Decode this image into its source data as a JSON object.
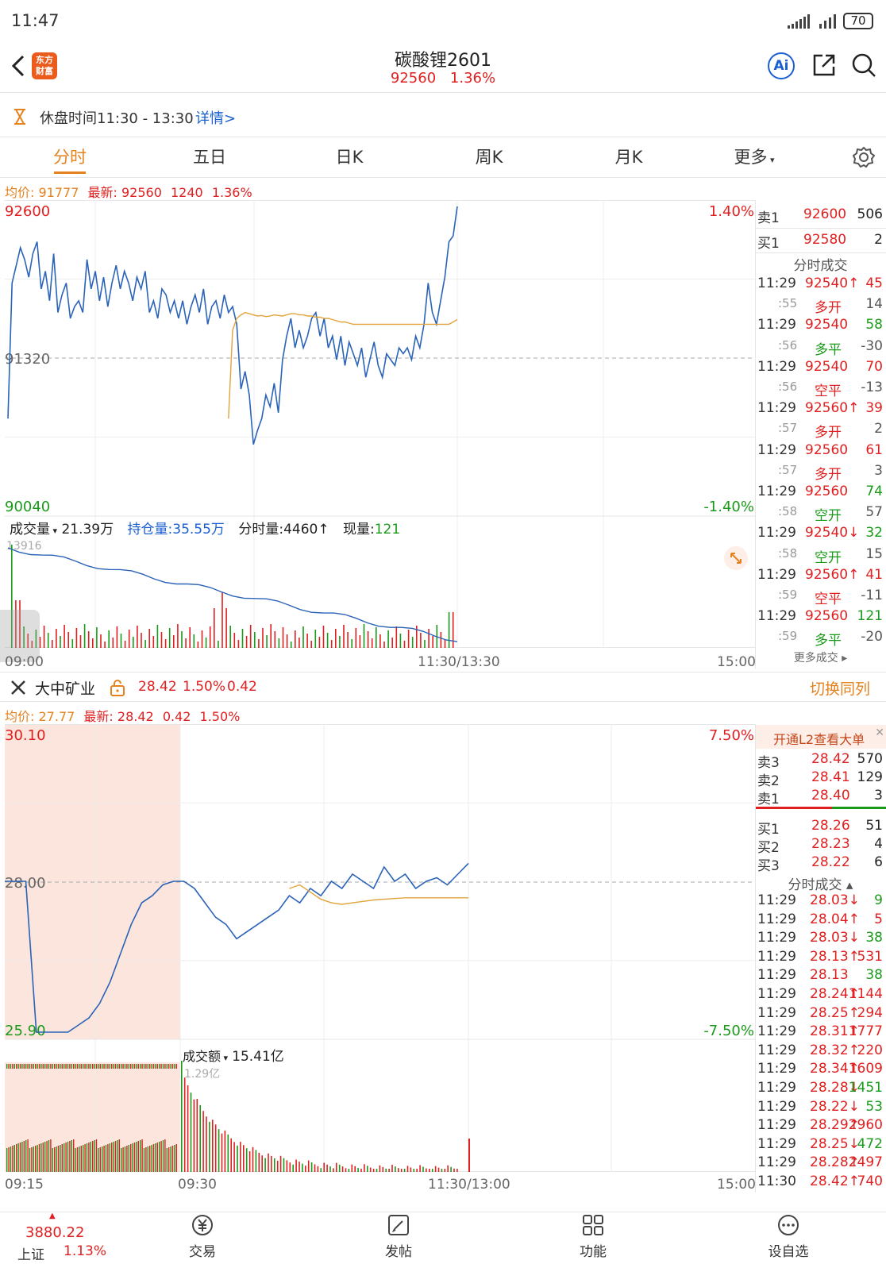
{
  "status_bar": {
    "time": "11:47",
    "battery": "70"
  },
  "header": {
    "logo_line1": "东方",
    "logo_line2": "财富",
    "title": "碳酸锂2601",
    "price": "92560",
    "change_pct": "1.36%"
  },
  "notice": {
    "text": "休盘时间11:30 - 13:30",
    "link": "详情>"
  },
  "tabs": [
    {
      "label": "分时",
      "active": true
    },
    {
      "label": "五日"
    },
    {
      "label": "日K"
    },
    {
      "label": "周K"
    },
    {
      "label": "月K"
    },
    {
      "label": "更多"
    }
  ],
  "chart1": {
    "avg_label": "均价:",
    "avg_value": "91777",
    "latest_label": "最新:",
    "latest_value": "92560",
    "latest_change": "1240",
    "latest_pct": "1.36%",
    "price_high": "92600",
    "price_mid": "91320",
    "price_low": "90040",
    "pct_high": "1.40%",
    "pct_low": "-1.40%",
    "vol_label": "成交量",
    "vol_value": "21.39万",
    "oi_label": "持仓量:",
    "oi_value": "35.55万",
    "seg_label": "分时量:",
    "seg_value": "4460↑",
    "cur_label": "现量:",
    "cur_value": "121",
    "vol_max": "13916",
    "time_start": "09:00",
    "time_mid": "11:30/13:30",
    "time_end": "15:00"
  },
  "orderbook1": {
    "rows": [
      {
        "label": "卖1",
        "price": "92600",
        "qty": "506"
      },
      {
        "label": "买1",
        "price": "92580",
        "qty": "2"
      }
    ],
    "trades_title": "分时成交",
    "trades": [
      {
        "time": "11:29",
        "price": "92540↑",
        "vol": "45",
        "pc": "red",
        "vc": "red"
      },
      {
        "time": ":55",
        "price": "多开",
        "vol": "14",
        "pc": "red",
        "vc": "gray"
      },
      {
        "time": "11:29",
        "price": "92540",
        "vol": "58",
        "pc": "red",
        "vc": "green"
      },
      {
        "time": ":56",
        "price": "多平",
        "vol": "-30",
        "pc": "green",
        "vc": "gray"
      },
      {
        "time": "11:29",
        "price": "92540",
        "vol": "70",
        "pc": "red",
        "vc": "red"
      },
      {
        "time": ":56",
        "price": "空平",
        "vol": "-13",
        "pc": "red",
        "vc": "gray"
      },
      {
        "time": "11:29",
        "price": "92560↑",
        "vol": "39",
        "pc": "red",
        "vc": "red"
      },
      {
        "time": ":57",
        "price": "多开",
        "vol": "2",
        "pc": "red",
        "vc": "gray"
      },
      {
        "time": "11:29",
        "price": "92560",
        "vol": "61",
        "pc": "red",
        "vc": "red"
      },
      {
        "time": ":57",
        "price": "多开",
        "vol": "3",
        "pc": "red",
        "vc": "gray"
      },
      {
        "time": "11:29",
        "price": "92560",
        "vol": "74",
        "pc": "red",
        "vc": "green"
      },
      {
        "time": ":58",
        "price": "空开",
        "vol": "57",
        "pc": "green",
        "vc": "gray"
      },
      {
        "time": "11:29",
        "price": "92540↓",
        "vol": "32",
        "pc": "red",
        "vc": "green"
      },
      {
        "time": ":58",
        "price": "空开",
        "vol": "15",
        "pc": "green",
        "vc": "gray"
      },
      {
        "time": "11:29",
        "price": "92560↑",
        "vol": "41",
        "pc": "red",
        "vc": "red"
      },
      {
        "time": ":59",
        "price": "空平",
        "vol": "-11",
        "pc": "red",
        "vc": "gray"
      },
      {
        "time": "11:29",
        "price": "92560",
        "vol": "121",
        "pc": "red",
        "vc": "green"
      },
      {
        "time": ":59",
        "price": "多平",
        "vol": "-20",
        "pc": "green",
        "vc": "gray"
      }
    ],
    "more": "更多成交 ▸"
  },
  "linked": {
    "name": "大中矿业",
    "price": "28.42",
    "pct": "1.50%",
    "change": "0.42",
    "switch": "切换同列"
  },
  "chart2": {
    "avg_label": "均价:",
    "avg_value": "27.77",
    "latest_label": "最新:",
    "latest_value": "28.42",
    "latest_change": "0.42",
    "latest_pct": "1.50%",
    "price_high": "30.10",
    "price_mid": "28.00",
    "price_low": "25.90",
    "pct_high": "7.50%",
    "pct_low": "-7.50%",
    "amt_label": "成交额",
    "amt_value": "15.41亿",
    "amt_max": "1.29亿",
    "time_start": "09:15",
    "time_open": "09:30",
    "time_mid": "11:30/13:00",
    "time_end": "15:00"
  },
  "orderbook2": {
    "l2": "开通L2查看大单",
    "sells": [
      {
        "label": "卖3",
        "price": "28.42",
        "qty": "570"
      },
      {
        "label": "卖2",
        "price": "28.41",
        "qty": "129"
      },
      {
        "label": "卖1",
        "price": "28.40",
        "qty": "3"
      }
    ],
    "buys": [
      {
        "label": "买1",
        "price": "28.26",
        "qty": "51"
      },
      {
        "label": "买2",
        "price": "28.23",
        "qty": "4"
      },
      {
        "label": "买3",
        "price": "28.22",
        "qty": "6"
      }
    ],
    "trades_title": "分时成交 ▴",
    "trades": [
      {
        "time": "11:29",
        "price": "28.03↓",
        "vol": "9",
        "pc": "red",
        "vc": "green"
      },
      {
        "time": "11:29",
        "price": "28.04↑",
        "vol": "5",
        "pc": "red",
        "vc": "red"
      },
      {
        "time": "11:29",
        "price": "28.03↓",
        "vol": "38",
        "pc": "red",
        "vc": "green"
      },
      {
        "time": "11:29",
        "price": "28.13↑",
        "vol": "531",
        "pc": "red",
        "vc": "red"
      },
      {
        "time": "11:29",
        "price": "28.13",
        "vol": "38",
        "pc": "red",
        "vc": "green"
      },
      {
        "time": "11:29",
        "price": "28.24↑",
        "vol": "1144",
        "pc": "red",
        "vc": "red"
      },
      {
        "time": "11:29",
        "price": "28.25↑",
        "vol": "294",
        "pc": "red",
        "vc": "red"
      },
      {
        "time": "11:29",
        "price": "28.31↑",
        "vol": "1777",
        "pc": "red",
        "vc": "red"
      },
      {
        "time": "11:29",
        "price": "28.32↑",
        "vol": "220",
        "pc": "red",
        "vc": "red"
      },
      {
        "time": "11:29",
        "price": "28.34↑",
        "vol": "1609",
        "pc": "red",
        "vc": "red"
      },
      {
        "time": "11:29",
        "price": "28.28↓",
        "vol": "1451",
        "pc": "red",
        "vc": "green"
      },
      {
        "time": "11:29",
        "price": "28.22↓",
        "vol": "53",
        "pc": "red",
        "vc": "green"
      },
      {
        "time": "11:29",
        "price": "28.29↑",
        "vol": "2960",
        "pc": "red",
        "vc": "red"
      },
      {
        "time": "11:29",
        "price": "28.25↓",
        "vol": "472",
        "pc": "red",
        "vc": "green"
      },
      {
        "time": "11:29",
        "price": "28.28↑",
        "vol": "2497",
        "pc": "red",
        "vc": "red"
      },
      {
        "time": "11:30",
        "price": "28.42↑",
        "vol": "740",
        "pc": "red",
        "vc": "red"
      }
    ]
  },
  "bottom_nav": {
    "index_value": "3880.22",
    "index_name": "上证",
    "index_pct": "1.13%",
    "items": [
      "交易",
      "发帖",
      "功能",
      "设自选"
    ]
  },
  "colors": {
    "price_line": "#2a63b8",
    "avg_line": "#e2a33a",
    "up": "#e02020",
    "down": "#1a9a1a",
    "accent": "#e5821e"
  },
  "chart_data": [
    {
      "type": "line",
      "title": "",
      "xlabel": "",
      "ylabel": "",
      "ylim": [
        90040,
        92600
      ],
      "x_ticks": [
        "09:00",
        "11:30/13:30",
        "15:00"
      ],
      "series": [
        {
          "name": "",
          "values": [
            90800,
            91950,
            92100,
            92250,
            92150,
            92000,
            92200,
            92300,
            91900,
            92050,
            91800,
            92200,
            91700,
            91850,
            91950,
            91650,
            91750,
            91800,
            91700,
            92150,
            91900,
            92050,
            91800,
            92000,
            91750,
            91950,
            92100,
            91900,
            92050,
            91950,
            91800,
            92000,
            91900,
            92050,
            91700,
            91800,
            91650,
            91900,
            91850,
            91700,
            91800,
            91650,
            91800,
            91600,
            91750,
            91850,
            91700,
            91900,
            91600,
            91750,
            91800,
            91650,
            91850,
            91700,
            91750,
            91600,
            91050,
            91200,
            91000,
            90580,
            90700,
            90800,
            91000,
            90900,
            91100,
            90850,
            91300,
            91500,
            91650,
            91400,
            91550,
            91400,
            91500,
            91650,
            91700,
            91500,
            91650,
            91400,
            91500,
            91300,
            91500,
            91250,
            91450,
            91350,
            91250,
            91400,
            91150,
            91300,
            91450,
            91250,
            91150,
            91350,
            91300,
            91250,
            91400,
            91350,
            91400,
            91300,
            91500,
            91400,
            91600,
            91950,
            91700,
            91600,
            91800,
            92000,
            92300,
            92350,
            92600
          ]
        },
        {
          "name": "",
          "values": [
            90800,
            91550,
            91650,
            91680,
            91700,
            91690,
            91680,
            91670,
            91675,
            91665,
            91670,
            91680,
            91675,
            91670,
            91680,
            91690,
            91690,
            91680,
            91680,
            91670,
            91670,
            91660,
            91660,
            91650,
            91650,
            91640,
            91630,
            91620,
            91620,
            91610,
            91600,
            91600,
            91600,
            91600,
            91600,
            91600,
            91600,
            91600,
            91600,
            91600,
            91600,
            91600,
            91600,
            91600,
            91600,
            91600,
            91600,
            91600,
            91600,
            91600,
            91600,
            91600,
            91600,
            91600,
            91620,
            91640
          ]
        }
      ]
    },
    {
      "type": "line",
      "title": "",
      "xlabel": "",
      "ylabel": "",
      "ylim": [
        25.9,
        30.1
      ],
      "x_ticks": [
        "09:15",
        "09:30",
        "11:30/13:00",
        "15:00"
      ],
      "series": [
        {
          "name": "",
          "values": [
            28.0,
            28.0,
            28.0,
            25.9,
            25.9,
            25.9,
            25.9,
            26.0,
            26.1,
            26.3,
            26.6,
            27.0,
            27.4,
            27.7,
            27.8,
            27.95,
            28.0,
            28.0,
            27.9,
            27.7,
            27.5,
            27.4,
            27.2,
            27.3,
            27.4,
            27.5,
            27.6,
            27.8,
            27.7,
            27.9,
            27.8,
            28.0,
            27.9,
            28.1,
            28.0,
            27.9,
            28.2,
            28.0,
            28.1,
            27.9,
            28.0,
            28.05,
            27.95,
            28.1,
            28.25
          ]
        },
        {
          "name": "",
          "values": [
            27.9,
            27.95,
            27.85,
            27.75,
            27.7,
            27.68,
            27.7,
            27.72,
            27.74,
            27.75,
            27.76,
            27.77,
            27.77,
            27.77,
            27.77,
            27.77,
            27.77,
            27.77
          ]
        }
      ]
    }
  ]
}
